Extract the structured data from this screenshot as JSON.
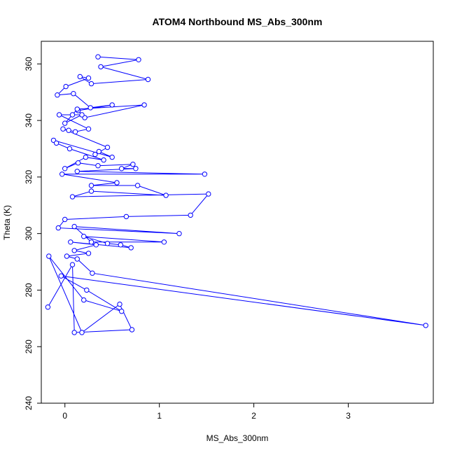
{
  "chart_data": {
    "type": "line",
    "title": "ATOM4 Northbound MS_Abs_300nm",
    "xlabel": "MS_Abs_300nm",
    "ylabel": "Theta (K)",
    "xlim": [
      -0.25,
      3.9
    ],
    "ylim": [
      240,
      368
    ],
    "xticks": [
      0,
      1,
      2,
      3
    ],
    "xtick_labels": [
      "0",
      "1",
      "2",
      "3"
    ],
    "yticks": [
      240,
      260,
      280,
      300,
      320,
      340,
      360
    ],
    "ytick_labels": [
      "240",
      "260",
      "280",
      "300",
      "320",
      "340",
      "360"
    ],
    "grid": false,
    "legend": "none",
    "series": [
      {
        "color": "#0000ff",
        "marker": "open-circle",
        "x": [
          0.35,
          0.78,
          0.38,
          0.88,
          0.28,
          0.16,
          0.25,
          0.01,
          -0.08,
          0.09,
          0.27,
          0.5,
          0.14,
          0.21,
          0.84,
          0.13,
          0.08,
          0.0,
          0.18,
          -0.06,
          0.25,
          0.11,
          0.04,
          -0.02,
          0.45,
          0.32,
          0.36,
          0.5,
          -0.12,
          -0.09,
          0.05,
          0.41,
          0.22,
          0.0,
          0.14,
          0.35,
          0.72,
          0.6,
          0.75,
          0.13,
          1.48,
          -0.03,
          0.55,
          0.28,
          0.77,
          1.07,
          0.28,
          0.08,
          1.52,
          1.33,
          0.65,
          0.0,
          -0.07,
          1.21,
          0.1,
          0.28,
          1.05,
          0.2,
          0.45,
          0.59,
          0.7,
          0.06,
          0.33,
          0.1,
          0.25,
          0.02,
          0.13,
          0.29,
          3.82,
          -0.04,
          0.23,
          0.6,
          0.2,
          -0.17,
          0.18,
          0.58,
          0.71,
          0.1,
          0.08,
          -0.18
        ],
        "y": [
          362.5,
          361.5,
          359.0,
          354.5,
          353.0,
          355.5,
          355.0,
          352.0,
          349.0,
          349.5,
          344.5,
          345.5,
          343.5,
          341.0,
          345.5,
          344.0,
          342.0,
          339.0,
          342.0,
          342.0,
          337.0,
          336.0,
          336.5,
          337.0,
          330.5,
          328.0,
          329.0,
          327.0,
          333.0,
          332.0,
          330.0,
          326.0,
          327.0,
          323.0,
          325.0,
          324.0,
          324.5,
          323.0,
          323.0,
          322.0,
          321.0,
          321.0,
          318.0,
          317.0,
          317.0,
          313.5,
          315.0,
          313.0,
          314.0,
          306.5,
          306.0,
          305.0,
          302.0,
          300.0,
          302.5,
          297.0,
          297.0,
          299.0,
          296.5,
          296.0,
          295.0,
          297.0,
          296.0,
          294.0,
          293.0,
          292.0,
          291.0,
          286.0,
          267.5,
          285.0,
          280.0,
          272.5,
          276.5,
          292.0,
          265.0,
          275.0,
          266.0,
          265.0,
          289.0,
          274.0
        ]
      }
    ]
  }
}
